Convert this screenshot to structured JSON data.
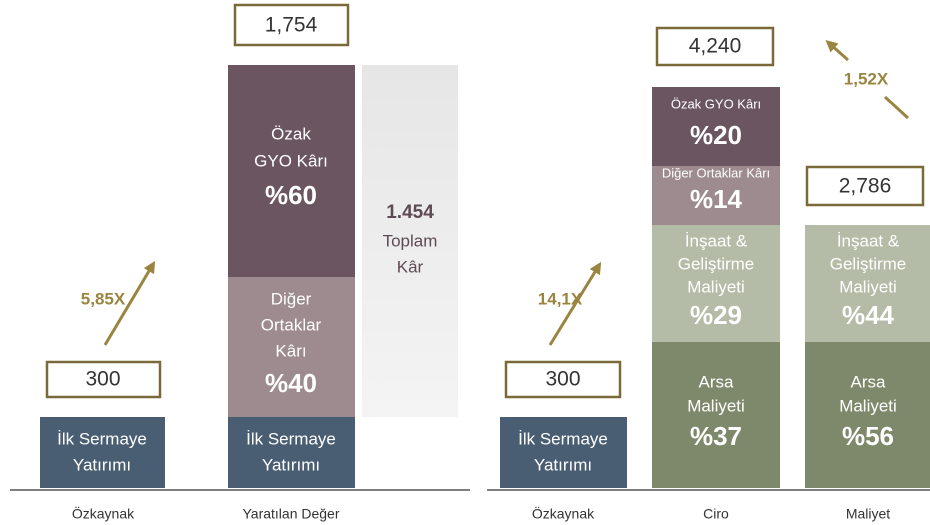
{
  "left": {
    "multiplier": "5,85X",
    "columns": [
      {
        "label": "Özkaynak",
        "value": "300",
        "segments": [
          {
            "lines": [
              "İlk Sermaye",
              "Yatırımı"
            ]
          }
        ]
      },
      {
        "label": "Yaratılan Değer",
        "value": "1,754",
        "segments": [
          {
            "lines": [
              "Özak",
              "GYO Kârı"
            ],
            "share": "%60"
          },
          {
            "lines": [
              "Diğer",
              "Ortaklar",
              "Kârı"
            ],
            "share": "%40"
          },
          {
            "lines": [
              "İlk Sermaye",
              "Yatırımı"
            ]
          }
        ]
      }
    ],
    "total": {
      "value": "1.454",
      "lines": [
        "Toplam",
        "Kâr"
      ]
    }
  },
  "right": {
    "multipliers": [
      "14,1X",
      "1,52X"
    ],
    "columns": [
      {
        "label": "Özkaynak",
        "value": "300",
        "segments": [
          {
            "lines": [
              "İlk Sermaye",
              "Yatırımı"
            ]
          }
        ]
      },
      {
        "label": "Ciro",
        "value": "4,240",
        "segments": [
          {
            "lines": [
              "Özak GYO Kârı"
            ],
            "share": "%20"
          },
          {
            "lines": [
              "Diğer Ortaklar Kârı"
            ],
            "share": "%14"
          },
          {
            "lines": [
              "İnşaat &",
              "Geliştirme",
              "Maliyeti"
            ],
            "share": "%29"
          },
          {
            "lines": [
              "Arsa",
              "Maliyeti"
            ],
            "share": "%37"
          }
        ]
      },
      {
        "label": "Maliyet",
        "value": "2,786",
        "segments": [
          {
            "lines": [
              "İnşaat &",
              "Geliştirme",
              "Maliyeti"
            ],
            "share": "%44"
          },
          {
            "lines": [
              "Arsa",
              "Maliyeti"
            ],
            "share": "%56"
          }
        ]
      }
    ]
  }
}
